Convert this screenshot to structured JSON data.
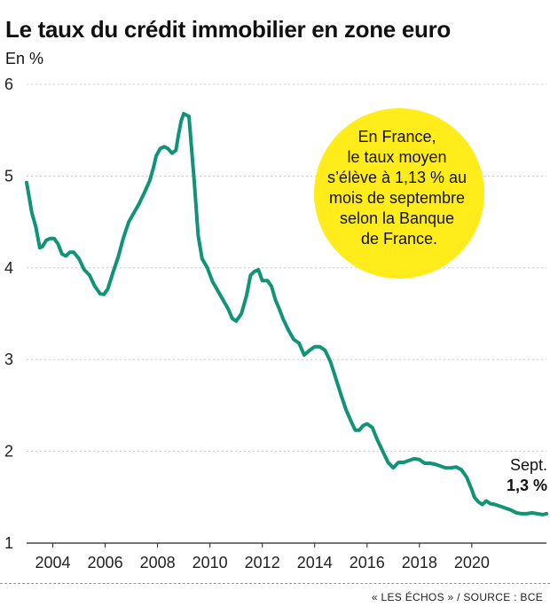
{
  "header": {
    "title": "Le taux du crédit immobilier en zone euro",
    "unit": "En %"
  },
  "callout": {
    "lines": [
      "En France,",
      "le taux moyen",
      "s’élève à 1,13 % au",
      "mois de septembre",
      "selon la Banque",
      "de France."
    ],
    "color": "#ffec1a"
  },
  "end_label": {
    "label": "Sept.",
    "value": "1,3 %"
  },
  "footer": {
    "source": "« LES ÉCHOS » / SOURCE : BCE"
  },
  "chart_data": {
    "type": "line",
    "title": "Le taux du crédit immobilier en zone euro",
    "ylabel": "En %",
    "xlabel": "",
    "ylim": [
      1,
      6
    ],
    "xlim": [
      2003.0,
      2022.85
    ],
    "yticks": [
      1,
      2,
      3,
      4,
      5,
      6
    ],
    "xticks": [
      2004,
      2006,
      2008,
      2010,
      2012,
      2014,
      2016,
      2018,
      2020
    ],
    "grid": "horizontal",
    "line_color": "#109477",
    "series": [
      {
        "name": "",
        "x": [
          2003.0,
          2003.2,
          2003.35,
          2003.5,
          2003.6,
          2003.75,
          2003.9,
          2004.05,
          2004.2,
          2004.35,
          2004.5,
          2004.65,
          2004.8,
          2005.0,
          2005.2,
          2005.4,
          2005.6,
          2005.8,
          2005.95,
          2006.1,
          2006.3,
          2006.5,
          2006.7,
          2006.9,
          2007.1,
          2007.3,
          2007.5,
          2007.7,
          2007.85,
          2007.95,
          2008.1,
          2008.25,
          2008.4,
          2008.55,
          2008.7,
          2008.8,
          2008.9,
          2009.0,
          2009.2,
          2009.4,
          2009.55,
          2009.7,
          2009.9,
          2010.1,
          2010.3,
          2010.5,
          2010.7,
          2010.85,
          2011.0,
          2011.2,
          2011.4,
          2011.55,
          2011.7,
          2011.85,
          2012.0,
          2012.2,
          2012.35,
          2012.5,
          2012.65,
          2012.8,
          2013.0,
          2013.2,
          2013.4,
          2013.6,
          2013.8,
          2014.0,
          2014.2,
          2014.4,
          2014.6,
          2014.8,
          2015.0,
          2015.2,
          2015.4,
          2015.55,
          2015.7,
          2015.85,
          2016.0,
          2016.2,
          2016.4,
          2016.6,
          2016.8,
          2017.0,
          2017.2,
          2017.4,
          2017.6,
          2017.8,
          2018.0,
          2018.2,
          2018.4,
          2018.6,
          2018.8,
          2019.0,
          2019.2,
          2019.4,
          2019.6,
          2019.8,
          2020.0,
          2020.1,
          2020.25,
          2020.4,
          2020.55,
          2020.7,
          2020.9,
          2021.1,
          2021.3,
          2021.5,
          2021.7,
          2021.9,
          2022.1,
          2022.3,
          2022.5,
          2022.7,
          2022.85
        ],
        "y": [
          4.93,
          4.6,
          4.45,
          4.22,
          4.23,
          4.3,
          4.32,
          4.32,
          4.26,
          4.15,
          4.13,
          4.17,
          4.17,
          4.1,
          3.98,
          3.92,
          3.8,
          3.72,
          3.71,
          3.77,
          3.95,
          4.12,
          4.33,
          4.5,
          4.6,
          4.7,
          4.82,
          4.95,
          5.1,
          5.22,
          5.3,
          5.32,
          5.3,
          5.25,
          5.28,
          5.45,
          5.6,
          5.68,
          5.65,
          4.95,
          4.35,
          4.1,
          4.0,
          3.85,
          3.75,
          3.65,
          3.55,
          3.45,
          3.42,
          3.5,
          3.7,
          3.92,
          3.96,
          3.98,
          3.86,
          3.86,
          3.8,
          3.65,
          3.55,
          3.44,
          3.32,
          3.22,
          3.18,
          3.05,
          3.1,
          3.14,
          3.14,
          3.1,
          2.98,
          2.8,
          2.62,
          2.45,
          2.32,
          2.23,
          2.23,
          2.28,
          2.3,
          2.26,
          2.12,
          2.0,
          1.88,
          1.82,
          1.88,
          1.88,
          1.9,
          1.92,
          1.91,
          1.87,
          1.87,
          1.86,
          1.84,
          1.82,
          1.82,
          1.83,
          1.8,
          1.72,
          1.58,
          1.5,
          1.45,
          1.42,
          1.46,
          1.43,
          1.42,
          1.4,
          1.38,
          1.36,
          1.33,
          1.32,
          1.32,
          1.33,
          1.32,
          1.31,
          1.32
        ]
      }
    ],
    "annotations": [
      {
        "text": "Sept. 1,3 %",
        "x": 2022.85,
        "y": 1.3
      }
    ]
  }
}
